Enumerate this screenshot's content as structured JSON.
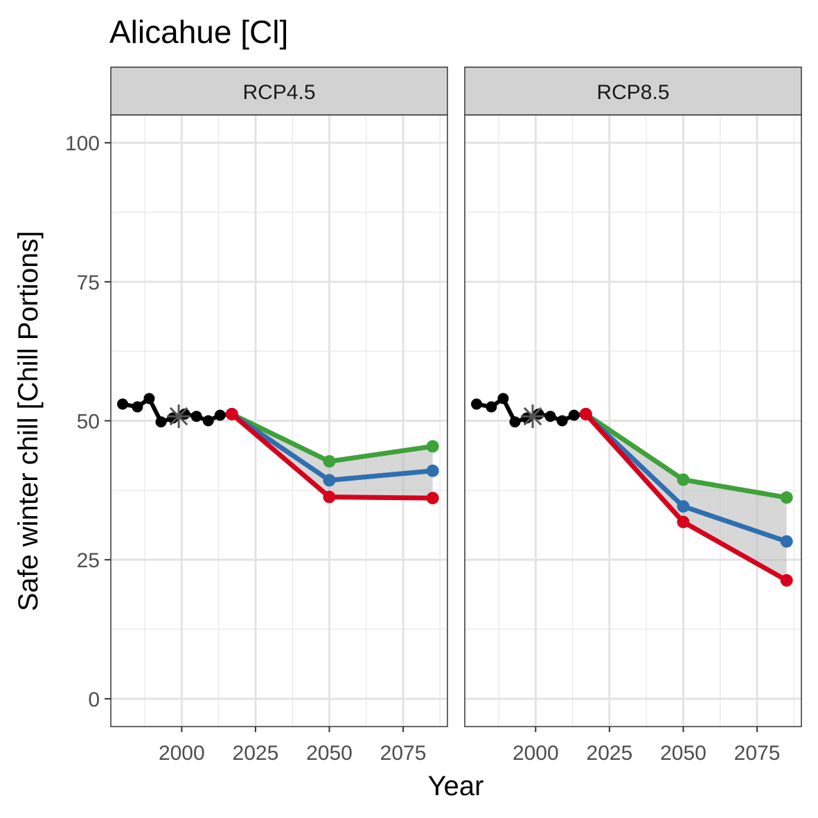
{
  "title": "Alicahue [Cl]",
  "xlabel": "Year",
  "ylabel": "Safe winter chill [Chill Portions]",
  "chart_data": {
    "type": "line",
    "title": "Alicahue [Cl]",
    "xlabel": "Year",
    "ylabel": "Safe winter chill [Chill Portions]",
    "xlim": [
      1976,
      2090
    ],
    "ylim": [
      -5,
      105
    ],
    "x_ticks": [
      2000,
      2025,
      2050,
      2075
    ],
    "y_ticks": [
      0,
      25,
      50,
      75,
      100
    ],
    "grid": true,
    "legend": "none",
    "panels": [
      {
        "label": "RCP4.5",
        "historic": {
          "x": [
            1980,
            1985,
            1989,
            1993,
            1997,
            2001,
            2005,
            2009,
            2013,
            2017
          ],
          "y": [
            53.0,
            52.5,
            54.0,
            49.8,
            50.5,
            51.2,
            50.8,
            50.0,
            51.0,
            51.2
          ]
        },
        "baseline_marker": {
          "x": 1999,
          "y": 50.8
        },
        "band": {
          "x": [
            2017,
            2050,
            2085
          ],
          "lower": [
            51.2,
            36.3,
            36.1
          ],
          "upper": [
            51.2,
            42.7,
            45.4
          ]
        },
        "series": [
          {
            "color": "#3FA13A",
            "x": [
              2017,
              2050,
              2085
            ],
            "y": [
              51.2,
              42.7,
              45.4
            ]
          },
          {
            "color": "#2E6FB0",
            "x": [
              2017,
              2050,
              2085
            ],
            "y": [
              51.2,
              39.3,
              41.0
            ]
          },
          {
            "color": "#D7001C",
            "x": [
              2017,
              2050,
              2085
            ],
            "y": [
              51.2,
              36.3,
              36.1
            ]
          }
        ]
      },
      {
        "label": "RCP8.5",
        "historic": {
          "x": [
            1980,
            1985,
            1989,
            1993,
            1997,
            2001,
            2005,
            2009,
            2013,
            2017
          ],
          "y": [
            53.0,
            52.5,
            54.0,
            49.8,
            50.5,
            51.2,
            50.8,
            50.0,
            51.0,
            51.2
          ]
        },
        "baseline_marker": {
          "x": 1999,
          "y": 50.8
        },
        "band": {
          "x": [
            2017,
            2050,
            2085
          ],
          "lower": [
            51.2,
            31.8,
            21.3
          ],
          "upper": [
            51.2,
            39.4,
            36.2
          ]
        },
        "series": [
          {
            "color": "#3FA13A",
            "x": [
              2017,
              2050,
              2085
            ],
            "y": [
              51.2,
              39.4,
              36.2
            ]
          },
          {
            "color": "#2E6FB0",
            "x": [
              2017,
              2050,
              2085
            ],
            "y": [
              51.2,
              34.6,
              28.3
            ]
          },
          {
            "color": "#D7001C",
            "x": [
              2017,
              2050,
              2085
            ],
            "y": [
              51.2,
              31.8,
              21.3
            ]
          }
        ]
      }
    ]
  }
}
